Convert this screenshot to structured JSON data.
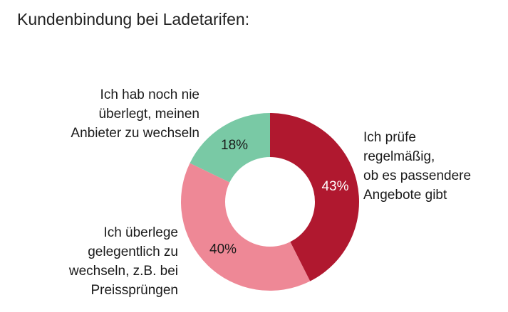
{
  "title": "Kundenbindung bei Ladetarifen:",
  "chart_data": {
    "type": "pie",
    "donut": true,
    "slices": [
      {
        "label_lines": [
          "Ich prüfe",
          "regelmäßig,",
          "ob es passendere",
          "Angebote gibt"
        ],
        "value": 43,
        "value_label": "43%",
        "color": "#b0182f",
        "value_label_color": "#ffffff"
      },
      {
        "label_lines": [
          "Ich überlege",
          "gelegentlich zu",
          "wechseln, z.B. bei",
          "Preissprüngen"
        ],
        "value": 40,
        "value_label": "40%",
        "color": "#ee8896",
        "value_label_color": "#1a1a1a"
      },
      {
        "label_lines": [
          "Ich hab noch nie",
          "überlegt, meinen",
          "Anbieter zu wechseln"
        ],
        "value": 18,
        "value_label": "18%",
        "color": "#79c9a5",
        "value_label_color": "#1a1a1a"
      }
    ]
  }
}
